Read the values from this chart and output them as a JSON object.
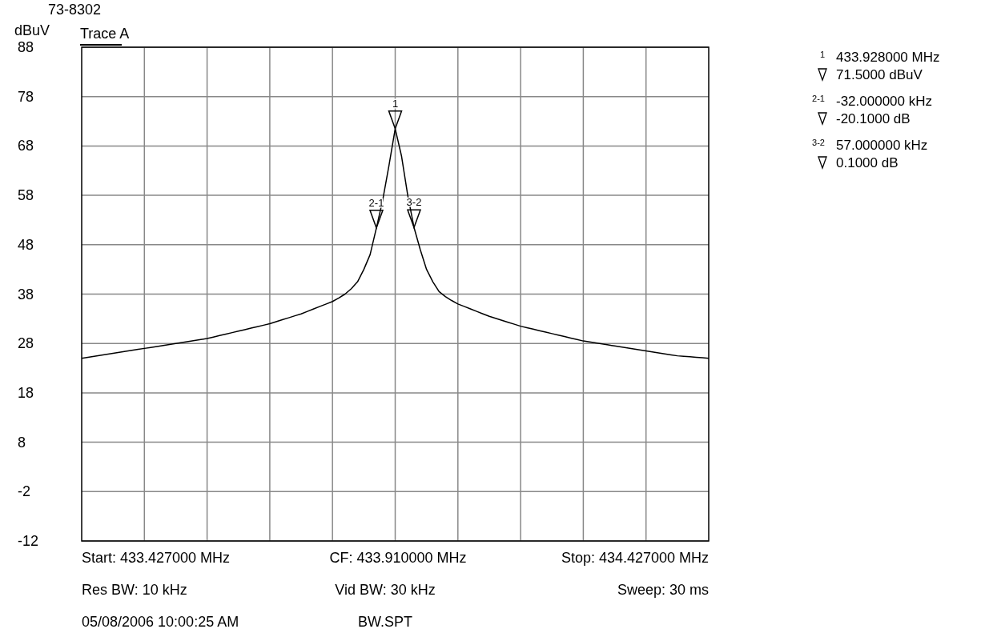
{
  "chart_data": {
    "type": "line",
    "title": "73-8302",
    "ylabel": "dBuV",
    "grid": true,
    "line_style": "solid",
    "tick_labels": "y",
    "categories": [
      null,
      null,
      null,
      null,
      null,
      null,
      null,
      null,
      null,
      null,
      null,
      null,
      null,
      null,
      null,
      null,
      null,
      null,
      null,
      null,
      null,
      null,
      null,
      null,
      null,
      null,
      null,
      null,
      null,
      null,
      null,
      null,
      null,
      null,
      null,
      null,
      null,
      null,
      null,
      null,
      null,
      null,
      null,
      null,
      null,
      null,
      null,
      null,
      null,
      null,
      null,
      null,
      null,
      null,
      null,
      null,
      null,
      null,
      null,
      null,
      null,
      null,
      null,
      null,
      null,
      null,
      null,
      null,
      null,
      null,
      null,
      null,
      null,
      null,
      null,
      null,
      null,
      null,
      null,
      null,
      null,
      null,
      null,
      null,
      null,
      null,
      null,
      null,
      null,
      null,
      null,
      null,
      null,
      null,
      null,
      null,
      null,
      null,
      null,
      null,
      null
    ],
    "ylim": [
      -12,
      88
    ],
    "yticks": [
      -12,
      -2,
      8,
      18,
      28,
      38,
      48,
      58,
      68,
      78,
      88
    ],
    "series": [
      {
        "name": "Trace A",
        "color": "#000000",
        "values": [
          25,
          25.2,
          25.4,
          25.6,
          25.8,
          26,
          26.2,
          26.4,
          26.6,
          26.8,
          27,
          27.2,
          27.4,
          27.6,
          27.8,
          28,
          28.2,
          28.4,
          28.6,
          28.8,
          29,
          29.3,
          29.6,
          29.9,
          30.2,
          30.5,
          30.8,
          31.1,
          31.4,
          31.7,
          32,
          32.4,
          32.8,
          33.2,
          33.6,
          34,
          34.5,
          35,
          35.5,
          36,
          36.5,
          37.2,
          38,
          39.1,
          40.5,
          43,
          46,
          51.4,
          57,
          64,
          71.5,
          66,
          58,
          51.5,
          47,
          43,
          40.5,
          38.5,
          37.5,
          36.7,
          36,
          35.5,
          35,
          34.5,
          34,
          33.5,
          33.1,
          32.7,
          32.3,
          31.9,
          31.5,
          31.2,
          30.9,
          30.6,
          30.3,
          30,
          29.7,
          29.4,
          29.1,
          28.8,
          28.5,
          28.3,
          28.1,
          27.9,
          27.7,
          27.5,
          27.3,
          27.1,
          26.9,
          26.7,
          26.5,
          26.3,
          26.1,
          25.9,
          25.7,
          25.5,
          25.4,
          25.3,
          25.2,
          25.1,
          25
        ]
      }
    ],
    "annotations": [
      {
        "text": "1",
        "y": 71.5
      },
      {
        "text": "2-1",
        "y": 51.4
      },
      {
        "text": "3-2",
        "y": 51.5
      },
      "1",
      "433.928000 MHz",
      "71.5000 dBuV",
      "2-1",
      "-32.000000 kHz",
      "-20.1000 dB",
      "3-2",
      "57.000000 kHz",
      "0.1000 dB",
      "Start: 433.427000 MHz",
      "CF: 433.910000 MHz",
      "Stop: 434.427000 MHz",
      "Res BW: 10 kHz",
      "Vid BW: 30 kHz",
      "Sweep: 30 ms",
      "05/08/2006 10:00:25 AM",
      "BW.SPT"
    ]
  }
}
